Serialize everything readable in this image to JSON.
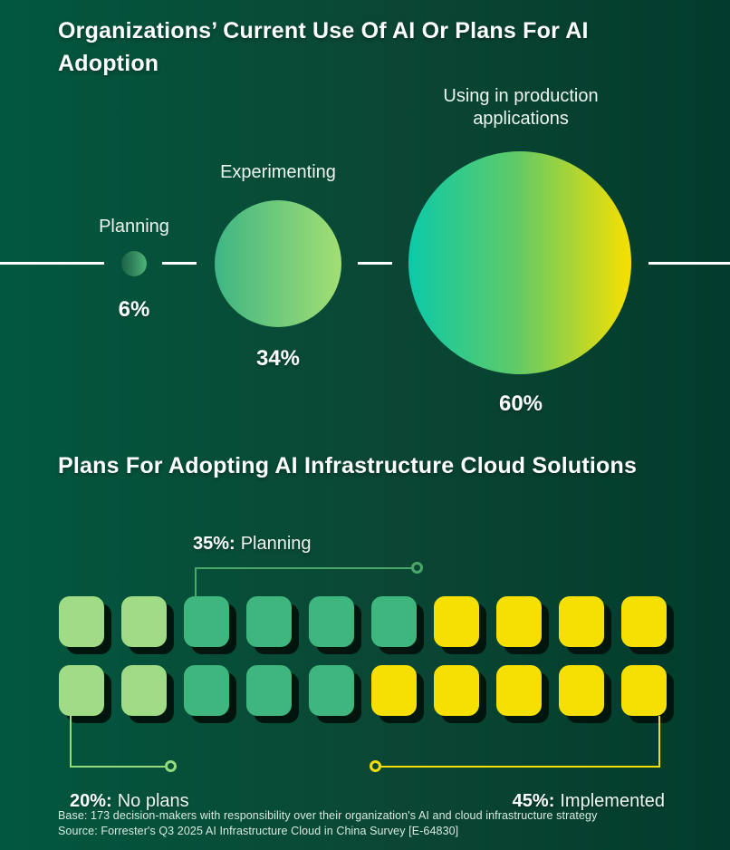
{
  "theme": {
    "bg_left": "#02583F",
    "bg_mid": "#0B4634",
    "bg_right": "#013C2C",
    "text_white": "#FFFFFF",
    "text_soft": "#ECF5EF",
    "footer_text": "#D9EAE1",
    "line_white": "#FFFFFF",
    "bubble1_from": "#1B6047",
    "bubble1_to": "#4DB377",
    "bubble2_from": "#3EB584",
    "bubble2_to": "#A3DF73",
    "bubble3_from": "#0CC9A8",
    "bubble3_mid": "#5FCA68",
    "bubble3_to": "#F8E000",
    "connector_green": "#4BA768",
    "connector_light_green": "#93DB7E",
    "connector_yellow": "#F6E003",
    "shadow": "#00150D"
  },
  "bubble_section": {
    "title": "Organizations’ Current Use Of AI Or Plans For AI Adoption",
    "bubbles": [
      {
        "label": "Planning",
        "value": "6%"
      },
      {
        "label": "Experimenting",
        "value": "34%"
      },
      {
        "label": "Using in production applications",
        "value": "60%"
      }
    ]
  },
  "waffle_section": {
    "title": "Plans For Adopting AI Infrastructure Cloud Solutions",
    "planning_label": {
      "value": "35%:",
      "label": "Planning"
    },
    "no_plans_label": {
      "value": "20%:",
      "label": "No plans"
    },
    "implemented_label": {
      "value": "45%:",
      "label": "Implemented"
    },
    "grid": {
      "rows": [
        [
          "light",
          "light",
          "medium",
          "medium",
          "medium",
          "medium",
          "yellow",
          "yellow",
          "yellow",
          "yellow"
        ],
        [
          "light",
          "light",
          "medium",
          "medium",
          "medium",
          "yellow",
          "yellow",
          "yellow",
          "yellow",
          "yellow"
        ]
      ],
      "colors": {
        "light": "#9FDC85",
        "medium": "#3EB67E",
        "yellow": "#F6E003"
      }
    }
  },
  "footer": {
    "base_line": "Base: 173 decision-makers with responsibility over their organization's AI and cloud infrastructure strategy",
    "source_line": "Source: Forrester's Q3 2025 AI Infrastructure Cloud in China Survey [E-64830]"
  },
  "chart_data": [
    {
      "type": "bubble",
      "title": "Organizations’ Current Use Of AI Or Plans For AI Adoption",
      "categories": [
        "Planning",
        "Experimenting",
        "Using in production applications"
      ],
      "values": [
        6,
        34,
        60
      ],
      "unit": "%",
      "legend_position": "labels above bubbles, values below bubbles",
      "notes": "Three gradient-filled circles sized by percentage, centered on a segmented horizontal white line"
    },
    {
      "type": "waffle",
      "title": "Plans For Adopting AI Infrastructure Cloud Solutions",
      "categories": [
        "No plans",
        "Planning",
        "Implemented"
      ],
      "values": [
        20,
        35,
        45
      ],
      "unit": "%",
      "total_squares": 20,
      "squares_per_category": [
        4,
        7,
        9
      ],
      "colors": [
        "#9FDC85",
        "#3EB67E",
        "#F6E003"
      ],
      "layout": "2 rows x 10 columns; row1: 2 light-green, 4 jade, 4 yellow; row2: 2 light-green, 3 jade, 5 yellow"
    }
  ]
}
